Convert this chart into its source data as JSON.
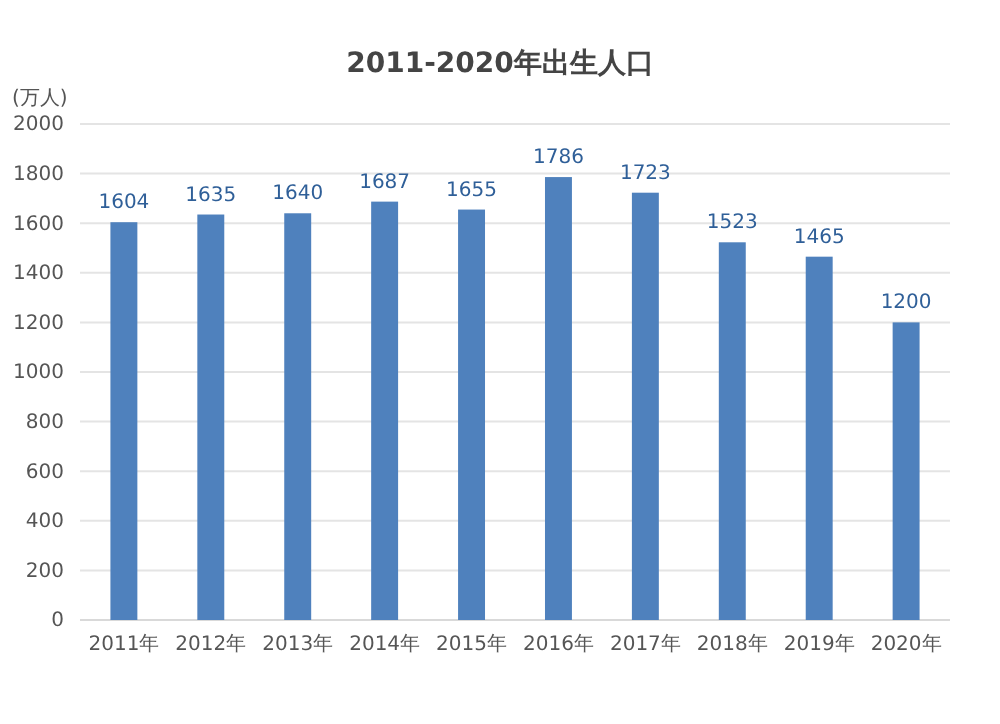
{
  "chart_data": {
    "type": "bar",
    "title": "2011-2020年出生人口",
    "ylabel": "(万人)",
    "categories": [
      "2011年",
      "2012年",
      "2013年",
      "2014年",
      "2015年",
      "2016年",
      "2017年",
      "2018年",
      "2019年",
      "2020年"
    ],
    "values": [
      1604,
      1635,
      1640,
      1687,
      1655,
      1786,
      1723,
      1523,
      1465,
      1200
    ],
    "color": "#4f81bd",
    "ylim": [
      0,
      2000
    ],
    "yticks": [
      0,
      200,
      400,
      600,
      800,
      1000,
      1200,
      1400,
      1600,
      1800,
      2000
    ],
    "grid": "y",
    "data_labels": true
  }
}
